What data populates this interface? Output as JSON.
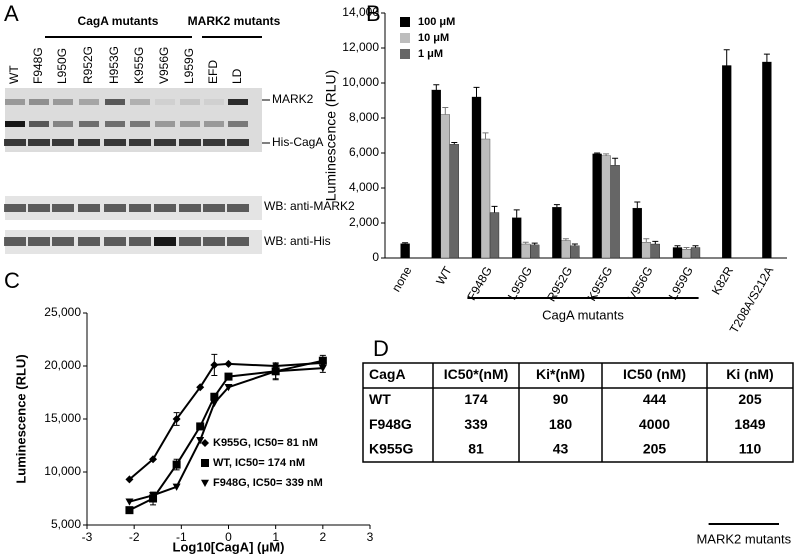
{
  "panel_labels": [
    "A",
    "B",
    "C",
    "D"
  ],
  "panel_a": {
    "group_labels": [
      "CagA mutants",
      "MARK2 mutants"
    ],
    "lanes": [
      "WT",
      "F948G",
      "L950G",
      "R952G",
      "H953G",
      "K955G",
      "V956G",
      "L959G",
      "EFD",
      "LD"
    ],
    "band_labels": [
      "MARK2",
      "His-CagA"
    ],
    "blot_labels": [
      "WB: anti-MARK2",
      "WB: anti-His"
    ]
  },
  "chart_data": [
    {
      "type": "bar",
      "y_label": "Luminescence (RLU)",
      "categories": [
        "none",
        "WT",
        "F948G",
        "L950G",
        "R952G",
        "K955G",
        "V956G",
        "L959G",
        "K82R",
        "T208A/S212A"
      ],
      "series": [
        {
          "name": "100 μM",
          "color": "#000000",
          "values": [
            820,
            9600,
            9200,
            2300,
            2900,
            5950,
            2850,
            600,
            11000,
            11200
          ],
          "errors": [
            50,
            300,
            550,
            450,
            150,
            50,
            350,
            100,
            900,
            450
          ]
        },
        {
          "name": "10 μM",
          "color": "#bdbdbd",
          "values": [
            null,
            8200,
            6800,
            800,
            1000,
            5850,
            900,
            500,
            null,
            null
          ],
          "errors": [
            null,
            400,
            350,
            100,
            100,
            100,
            200,
            100,
            null,
            null
          ]
        },
        {
          "name": "1 μM",
          "color": "#666666",
          "values": [
            null,
            6500,
            2600,
            750,
            700,
            5300,
            800,
            600,
            null,
            null
          ],
          "errors": [
            null,
            100,
            350,
            100,
            100,
            400,
            150,
            100,
            null,
            null
          ]
        }
      ],
      "groups": [
        {
          "name": "CagA mutants"
        },
        {
          "name": "MARK2 mutants"
        }
      ],
      "ylim": [
        0,
        14000
      ],
      "yticks": [
        0,
        {
          "value": 2000,
          "label": "2,000"
        },
        {
          "value": 4000,
          "label": "4,000"
        },
        {
          "value": 6000,
          "label": "6,000"
        },
        {
          "value": 8000,
          "label": "8,000"
        },
        {
          "value": 10000,
          "label": "10,000"
        },
        {
          "value": 12000,
          "label": "12,000"
        },
        {
          "value": 14000,
          "label": "14,000"
        }
      ],
      "legend": "upper left"
    },
    {
      "type": "scatter",
      "x_label": "Log10[CagA] (μM)",
      "y_label": "Luminescence (RLU)",
      "series": [
        {
          "name": "K955G, IC50= 81 nM",
          "marker": "diamond",
          "color": "#000000",
          "x": [
            -2.1,
            -1.6,
            -1.1,
            -0.6,
            -0.3,
            0,
            1,
            2
          ],
          "values": [
            9300,
            11200,
            15000,
            18000,
            20100,
            20200,
            20000,
            20300
          ],
          "errors": [
            null,
            null,
            600,
            null,
            1000,
            null,
            null,
            null
          ]
        },
        {
          "name": "WT, IC50= 174 nM",
          "marker": "square",
          "color": "#000000",
          "x": [
            -2.1,
            -1.6,
            -1.1,
            -0.6,
            -0.3,
            0,
            1,
            2
          ],
          "values": [
            6400,
            7500,
            10700,
            14300,
            17100,
            19000,
            19500,
            20500
          ],
          "errors": [
            null,
            600,
            500,
            null,
            null,
            null,
            800,
            500
          ]
        },
        {
          "name": "F948G, IC50= 339 nM",
          "marker": "triangle-down",
          "color": "#000000",
          "x": [
            -2.1,
            -1.6,
            -1.1,
            -0.6,
            -0.3,
            0,
            1,
            2
          ],
          "values": [
            7200,
            7800,
            8600,
            13000,
            16500,
            18000,
            19500,
            19800
          ],
          "errors": [
            null,
            null,
            null,
            null,
            null,
            null,
            700,
            400
          ]
        }
      ],
      "xlim": [
        -3,
        3
      ],
      "xticks": [
        -3,
        -2,
        -1,
        0,
        1,
        2,
        3
      ],
      "ylim": [
        5000,
        25000
      ],
      "yticks": [
        {
          "value": 5000,
          "label": "5,000"
        },
        {
          "value": 10000,
          "label": "10,000"
        },
        {
          "value": 15000,
          "label": "15,000"
        },
        {
          "value": 20000,
          "label": "20,000"
        },
        {
          "value": 25000,
          "label": "25,000"
        }
      ],
      "legend": "lower right"
    }
  ],
  "table": {
    "header": [
      "CagA",
      "IC50*(nM)",
      "Ki*(nM)",
      "IC50 (nM)",
      "Ki (nM)"
    ],
    "rows": [
      [
        "WT",
        174,
        90,
        444,
        205
      ],
      [
        "F948G",
        339,
        180,
        4000,
        1849
      ],
      [
        "K955G",
        81,
        43,
        205,
        110
      ]
    ]
  }
}
